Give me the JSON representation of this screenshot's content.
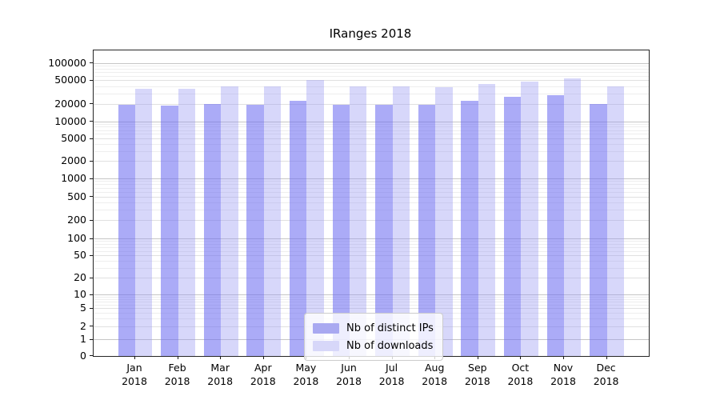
{
  "chart_data": {
    "type": "bar",
    "title": "IRanges 2018",
    "year": "2018",
    "categories": [
      "Jan",
      "Feb",
      "Mar",
      "Apr",
      "May",
      "Jun",
      "Jul",
      "Aug",
      "Sep",
      "Oct",
      "Nov",
      "Dec"
    ],
    "series": [
      {
        "name": "Nb of distinct IPs",
        "color": "#a9a9f1",
        "fill": "rgba(110,110,242,0.58)",
        "values": [
          19200,
          18700,
          20200,
          19600,
          22900,
          19400,
          19200,
          19200,
          22900,
          26400,
          28100,
          20200
        ]
      },
      {
        "name": "Nb of downloads",
        "color": "#d7d7f9",
        "fill": "rgba(150,150,242,0.38)",
        "values": [
          36700,
          36000,
          40000,
          39600,
          51100,
          39600,
          40000,
          38900,
          44500,
          48400,
          55500,
          40000
        ]
      }
    ],
    "yticks": [
      0,
      1,
      2,
      5,
      10,
      20,
      50,
      100,
      200,
      500,
      1000,
      2000,
      5000,
      10000,
      20000,
      50000,
      100000
    ],
    "ylim": [
      0,
      160000
    ],
    "yscale": "log-like with zero baseline",
    "xlabel": "",
    "ylabel": "",
    "grid": "horizontal major and minor",
    "legend_position": "lower center inside plot"
  },
  "colors": {
    "grid_major": "#c6c6c6",
    "grid_labeled": "#e0e0e0",
    "grid_minor": "#eeeeee",
    "spine": "#262626",
    "text": "#000000",
    "background": "#ffffff"
  }
}
